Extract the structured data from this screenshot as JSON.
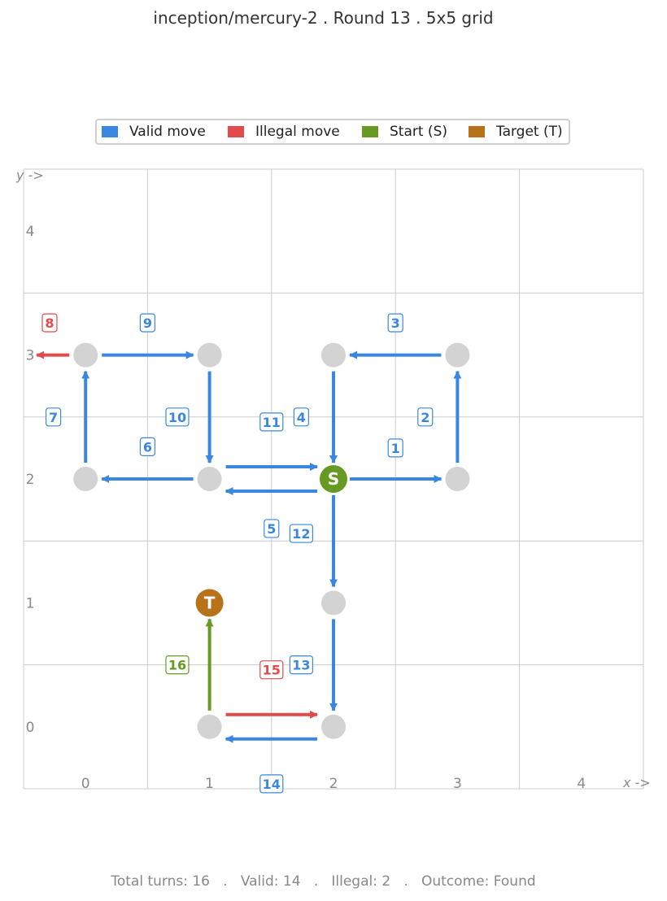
{
  "title": "inception/mercury-2  .  Round 13  .  5x5 grid",
  "legend": [
    {
      "label": "Valid move",
      "color": "#3987e0"
    },
    {
      "label": "Illegal move",
      "color": "#e04b4b"
    },
    {
      "label": "Start (S)",
      "color": "#669a22"
    },
    {
      "label": "Target (T)",
      "color": "#b8731a"
    }
  ],
  "axes": {
    "x_label": "x ->",
    "y_label": "y ->",
    "x_ticks": [
      "0",
      "1",
      "2",
      "3",
      "4"
    ],
    "y_ticks": [
      "0",
      "1",
      "2",
      "3",
      "4"
    ]
  },
  "colors": {
    "valid": "#3987e0",
    "illegal": "#e04b4b",
    "start": "#669a22",
    "target": "#b8731a",
    "visited": "#d3d3d3",
    "grid": "#cccccc"
  },
  "nodes": {
    "visited": [
      [
        0,
        3
      ],
      [
        1,
        3
      ],
      [
        2,
        3
      ],
      [
        3,
        3
      ],
      [
        0,
        2
      ],
      [
        1,
        2
      ],
      [
        3,
        2
      ],
      [
        2,
        1
      ],
      [
        1,
        0
      ],
      [
        2,
        0
      ]
    ],
    "start": {
      "x": 2,
      "y": 2,
      "label": "S"
    },
    "target": {
      "x": 1,
      "y": 1,
      "label": "T"
    }
  },
  "moves": [
    {
      "n": "1",
      "from": [
        2,
        2
      ],
      "to": [
        3,
        2
      ],
      "type": "valid"
    },
    {
      "n": "2",
      "from": [
        3,
        2
      ],
      "to": [
        3,
        3
      ],
      "type": "valid"
    },
    {
      "n": "3",
      "from": [
        3,
        3
      ],
      "to": [
        2,
        3
      ],
      "type": "valid"
    },
    {
      "n": "4",
      "from": [
        2,
        3
      ],
      "to": [
        2,
        2
      ],
      "type": "valid"
    },
    {
      "n": "5",
      "from": [
        2,
        2
      ],
      "to": [
        2,
        1
      ],
      "type": "valid"
    },
    {
      "n": "6",
      "from": [
        1,
        2
      ],
      "to": [
        0,
        2
      ],
      "type": "valid"
    },
    {
      "n": "7",
      "from": [
        0,
        2
      ],
      "to": [
        0,
        3
      ],
      "type": "valid"
    },
    {
      "n": "8",
      "from": [
        0,
        3
      ],
      "to": [
        -1,
        3
      ],
      "type": "illegal"
    },
    {
      "n": "9",
      "from": [
        0,
        3
      ],
      "to": [
        1,
        3
      ],
      "type": "valid"
    },
    {
      "n": "10",
      "from": [
        1,
        3
      ],
      "to": [
        1,
        2
      ],
      "type": "valid"
    },
    {
      "n": "11",
      "from": [
        1,
        2
      ],
      "to": [
        2,
        2
      ],
      "type": "valid"
    },
    {
      "n": "12",
      "from": [
        2,
        2
      ],
      "to": [
        1,
        2
      ],
      "type": "valid"
    },
    {
      "n": "13",
      "from": [
        2,
        1
      ],
      "to": [
        2,
        0
      ],
      "type": "valid"
    },
    {
      "n": "14",
      "from": [
        2,
        0
      ],
      "to": [
        1,
        0
      ],
      "type": "valid"
    },
    {
      "n": "15",
      "from": [
        1,
        0
      ],
      "to": [
        2,
        0
      ],
      "type": "illegal"
    },
    {
      "n": "16",
      "from": [
        1,
        0
      ],
      "to": [
        1,
        1
      ],
      "type": "start"
    }
  ],
  "footer": "Total turns: 16   .   Valid: 14   .   Illegal: 2   .   Outcome: Found"
}
